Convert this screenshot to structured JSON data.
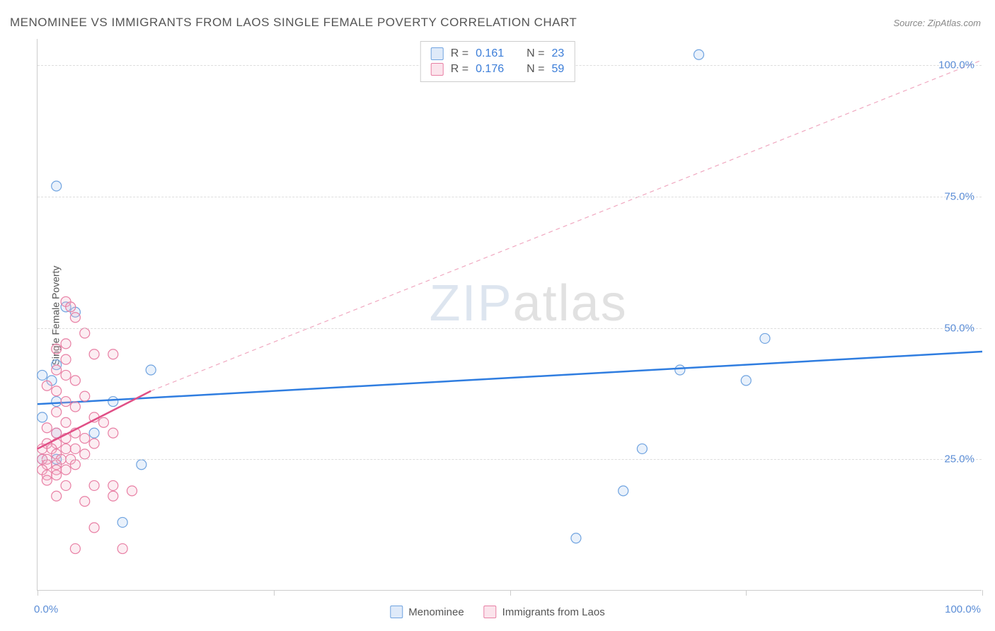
{
  "title": "MENOMINEE VS IMMIGRANTS FROM LAOS SINGLE FEMALE POVERTY CORRELATION CHART",
  "source": "Source: ZipAtlas.com",
  "y_axis_label": "Single Female Poverty",
  "x_origin_label": "0.0%",
  "x_max_label": "100.0%",
  "watermark_zip": "ZIP",
  "watermark_atlas": "atlas",
  "chart": {
    "type": "scatter",
    "xlim": [
      0,
      100
    ],
    "ylim": [
      0,
      105
    ],
    "y_ticks": [
      25,
      50,
      75,
      100
    ],
    "y_tick_labels": [
      "25.0%",
      "50.0%",
      "75.0%",
      "100.0%"
    ],
    "x_tick_positions": [
      0,
      25,
      50,
      75,
      100
    ],
    "background_color": "#ffffff",
    "grid_color": "#dddddd",
    "marker_radius": 7,
    "marker_stroke_width": 1.2,
    "marker_fill_opacity": 0.25,
    "series": [
      {
        "name": "Menominee",
        "color_stroke": "#6fa3e0",
        "color_fill": "#a9c8ee",
        "R": "0.161",
        "N": "23",
        "trend": {
          "x1": 0,
          "y1": 35.5,
          "x2": 100,
          "y2": 45.5,
          "color": "#2f7de0",
          "width": 2.5,
          "dash": ""
        },
        "points": [
          [
            2,
            77
          ],
          [
            3,
            54
          ],
          [
            2,
            43
          ],
          [
            0.5,
            41
          ],
          [
            1.5,
            40
          ],
          [
            2,
            36
          ],
          [
            8,
            36
          ],
          [
            12,
            42
          ],
          [
            0.5,
            33
          ],
          [
            2,
            30
          ],
          [
            6,
            30
          ],
          [
            0.5,
            25
          ],
          [
            2,
            25
          ],
          [
            11,
            24
          ],
          [
            9,
            13
          ],
          [
            57,
            10
          ],
          [
            62,
            19
          ],
          [
            64,
            27
          ],
          [
            68,
            42
          ],
          [
            70,
            102
          ],
          [
            75,
            40
          ],
          [
            77,
            48
          ],
          [
            4,
            53
          ]
        ]
      },
      {
        "name": "Immigrants from Laos",
        "color_stroke": "#e87fa4",
        "color_fill": "#f4b8cd",
        "R": "0.176",
        "N": "59",
        "trend_solid": {
          "x1": 0,
          "y1": 27,
          "x2": 12,
          "y2": 38,
          "color": "#e04f86",
          "width": 2.5
        },
        "trend_dashed": {
          "x1": 12,
          "y1": 38,
          "x2": 100,
          "y2": 101,
          "color": "#f0a8c0",
          "width": 1.2,
          "dash": "6,5"
        },
        "points": [
          [
            3,
            55
          ],
          [
            3.5,
            54
          ],
          [
            4,
            52
          ],
          [
            5,
            49
          ],
          [
            3,
            47
          ],
          [
            2,
            46
          ],
          [
            6,
            45
          ],
          [
            3,
            44
          ],
          [
            8,
            45
          ],
          [
            2,
            42
          ],
          [
            3,
            41
          ],
          [
            4,
            40
          ],
          [
            1,
            39
          ],
          [
            2,
            38
          ],
          [
            5,
            37
          ],
          [
            3,
            36
          ],
          [
            4,
            35
          ],
          [
            2,
            34
          ],
          [
            6,
            33
          ],
          [
            3,
            32
          ],
          [
            7,
            32
          ],
          [
            1,
            31
          ],
          [
            2,
            30
          ],
          [
            4,
            30
          ],
          [
            8,
            30
          ],
          [
            3,
            29
          ],
          [
            5,
            29
          ],
          [
            1,
            28
          ],
          [
            2,
            28
          ],
          [
            6,
            28
          ],
          [
            0.5,
            27
          ],
          [
            1.5,
            27
          ],
          [
            3,
            27
          ],
          [
            4,
            27
          ],
          [
            2,
            26
          ],
          [
            5,
            26
          ],
          [
            0.5,
            25
          ],
          [
            1,
            25
          ],
          [
            2.5,
            25
          ],
          [
            3.5,
            25
          ],
          [
            1,
            24
          ],
          [
            2,
            24
          ],
          [
            4,
            24
          ],
          [
            0.5,
            23
          ],
          [
            2,
            23
          ],
          [
            3,
            23
          ],
          [
            1,
            22
          ],
          [
            2,
            22
          ],
          [
            1,
            21
          ],
          [
            3,
            20
          ],
          [
            6,
            20
          ],
          [
            8,
            20
          ],
          [
            2,
            18
          ],
          [
            5,
            17
          ],
          [
            8,
            18
          ],
          [
            10,
            19
          ],
          [
            4,
            8
          ],
          [
            9,
            8
          ],
          [
            6,
            12
          ]
        ]
      }
    ]
  },
  "legend_labels": {
    "R_prefix": "R =",
    "N_prefix": "N ="
  }
}
